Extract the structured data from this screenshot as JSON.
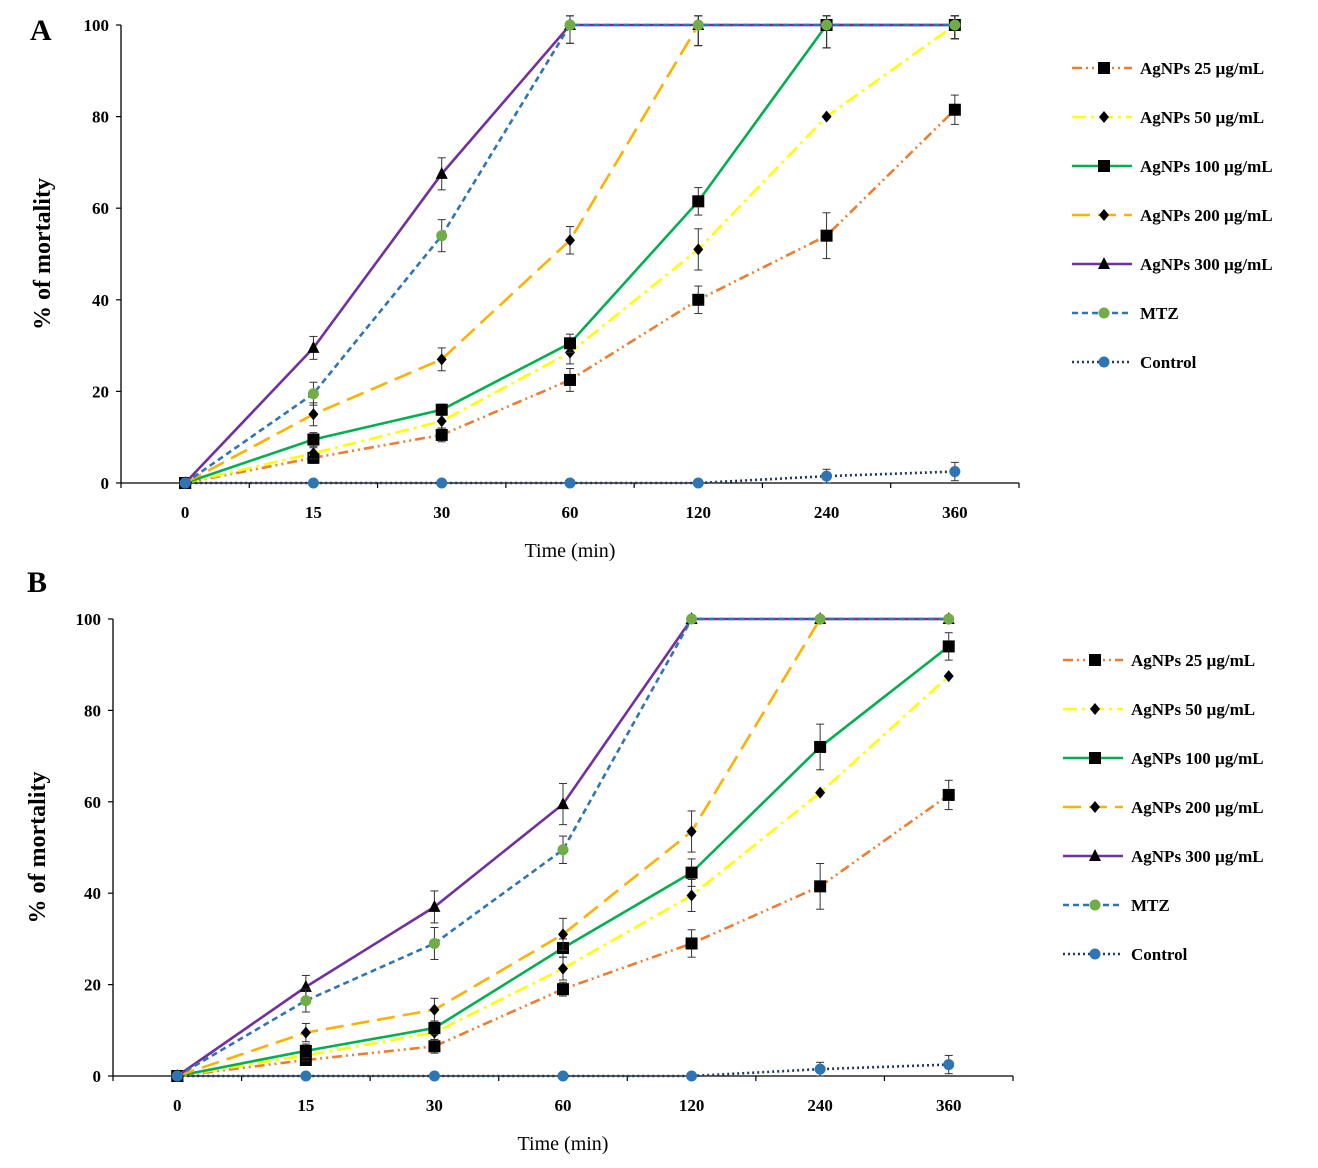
{
  "chart_data": [
    {
      "type": "line",
      "panel_label": "A",
      "xlabel": "Time  (min)",
      "ylabel": "% of mortality",
      "categories": [
        "0",
        "15",
        "30",
        "60",
        "120",
        "240",
        "360"
      ],
      "ylim": [
        0,
        100
      ],
      "yticks": [
        0,
        20,
        40,
        60,
        80,
        100
      ],
      "grid": false,
      "legend_position": "right",
      "series": [
        {
          "name": "AgNPs 25 µg/mL",
          "color": "#ED7D31",
          "dash": "dash-dot-dot",
          "marker": "square",
          "values": [
            0,
            5.5,
            10.5,
            22.5,
            40,
            54,
            81.5
          ],
          "errors": [
            0,
            1.2,
            1.5,
            2.5,
            3,
            5,
            3.2
          ]
        },
        {
          "name": "AgNPs 50 µg/mL",
          "color": "#FFFF00",
          "dash": "dash-dot",
          "marker": "diamond",
          "values": [
            0,
            6.5,
            13.5,
            28.5,
            51,
            80,
            100
          ],
          "errors": [
            0,
            1.2,
            1.5,
            2.5,
            4.5,
            0,
            3
          ]
        },
        {
          "name": "AgNPs 100 µg/mL",
          "color": "#00B050",
          "dash": "solid",
          "marker": "square",
          "values": [
            0,
            9.5,
            16,
            30.5,
            61.5,
            100,
            100
          ],
          "errors": [
            0,
            1.5,
            1.2,
            2,
            3,
            5,
            3
          ]
        },
        {
          "name": "AgNPs 200 µg/mL",
          "color": "#FFB000",
          "dash": "long-dash",
          "marker": "diamond",
          "values": [
            0,
            15,
            27,
            53,
            100,
            100,
            100
          ],
          "errors": [
            0,
            2.5,
            2.5,
            3,
            4.5,
            5,
            3
          ]
        },
        {
          "name": "AgNPs 300 µg/mL",
          "color": "#7030A0",
          "dash": "solid",
          "marker": "triangle",
          "values": [
            0,
            29.5,
            67.5,
            100,
            100,
            100,
            100
          ],
          "errors": [
            0,
            2.5,
            3.5,
            4,
            4.5,
            5,
            3
          ]
        },
        {
          "name": "MTZ",
          "color": "#2E75B6",
          "dash": "short-dash",
          "marker": "circle-green",
          "values": [
            0,
            19.5,
            54,
            100,
            100,
            100,
            100
          ],
          "errors": [
            0,
            2.5,
            3.5,
            4,
            4.5,
            5,
            3
          ]
        },
        {
          "name": "Control",
          "color": "#1F3864",
          "dash": "dotted",
          "marker": "circle-blue",
          "values": [
            0,
            0,
            0,
            0,
            0,
            1.5,
            2.5
          ],
          "errors": [
            0,
            0,
            0,
            0,
            0,
            1.5,
            2
          ]
        }
      ]
    },
    {
      "type": "line",
      "panel_label": "B",
      "xlabel": "Time  (min)",
      "ylabel": "% of mortality",
      "categories": [
        "0",
        "15",
        "30",
        "60",
        "120",
        "240",
        "360"
      ],
      "ylim": [
        0,
        100
      ],
      "yticks": [
        0,
        20,
        40,
        60,
        80,
        100
      ],
      "grid": false,
      "legend_position": "right",
      "series": [
        {
          "name": "AgNPs 25 µg/mL",
          "color": "#ED7D31",
          "dash": "dash-dot-dot",
          "marker": "square",
          "values": [
            0,
            3.5,
            6.5,
            19,
            29,
            41.5,
            61.5
          ],
          "errors": [
            0,
            1.2,
            1.5,
            1.5,
            3,
            5,
            3.2
          ]
        },
        {
          "name": "AgNPs 50 µg/mL",
          "color": "#FFFF00",
          "dash": "dash-dot",
          "marker": "diamond",
          "values": [
            0,
            4.5,
            9.5,
            23.5,
            39.5,
            62,
            87.5
          ],
          "errors": [
            0,
            1.2,
            1.5,
            2.5,
            3.5,
            0,
            0
          ]
        },
        {
          "name": "AgNPs 100 µg/mL",
          "color": "#00B050",
          "dash": "solid",
          "marker": "square",
          "values": [
            0,
            5.5,
            10.5,
            28,
            44.5,
            72,
            94
          ],
          "errors": [
            0,
            1.5,
            1.5,
            2,
            3,
            5,
            3
          ]
        },
        {
          "name": "AgNPs 200 µg/mL",
          "color": "#FFB000",
          "dash": "long-dash",
          "marker": "diamond",
          "values": [
            0,
            9.5,
            14.5,
            31,
            53.5,
            100,
            100
          ],
          "errors": [
            0,
            2,
            2.5,
            3.5,
            4.5,
            0,
            0
          ]
        },
        {
          "name": "AgNPs 300 µg/mL",
          "color": "#7030A0",
          "dash": "solid",
          "marker": "triangle",
          "values": [
            0,
            19.5,
            37,
            59.5,
            100,
            100,
            100
          ],
          "errors": [
            0,
            2.5,
            3.5,
            4.5,
            0,
            0,
            0
          ]
        },
        {
          "name": "MTZ",
          "color": "#2E75B6",
          "dash": "short-dash",
          "marker": "circle-green",
          "values": [
            0,
            16.5,
            29,
            49.5,
            100,
            100,
            100
          ],
          "errors": [
            0,
            2.5,
            3.5,
            3,
            0,
            0,
            0
          ]
        },
        {
          "name": "Control",
          "color": "#1F3864",
          "dash": "dotted",
          "marker": "circle-blue",
          "values": [
            0,
            0,
            0,
            0,
            0,
            1.5,
            2.5
          ],
          "errors": [
            0,
            0,
            0,
            0,
            0,
            1.5,
            2
          ]
        }
      ]
    }
  ]
}
